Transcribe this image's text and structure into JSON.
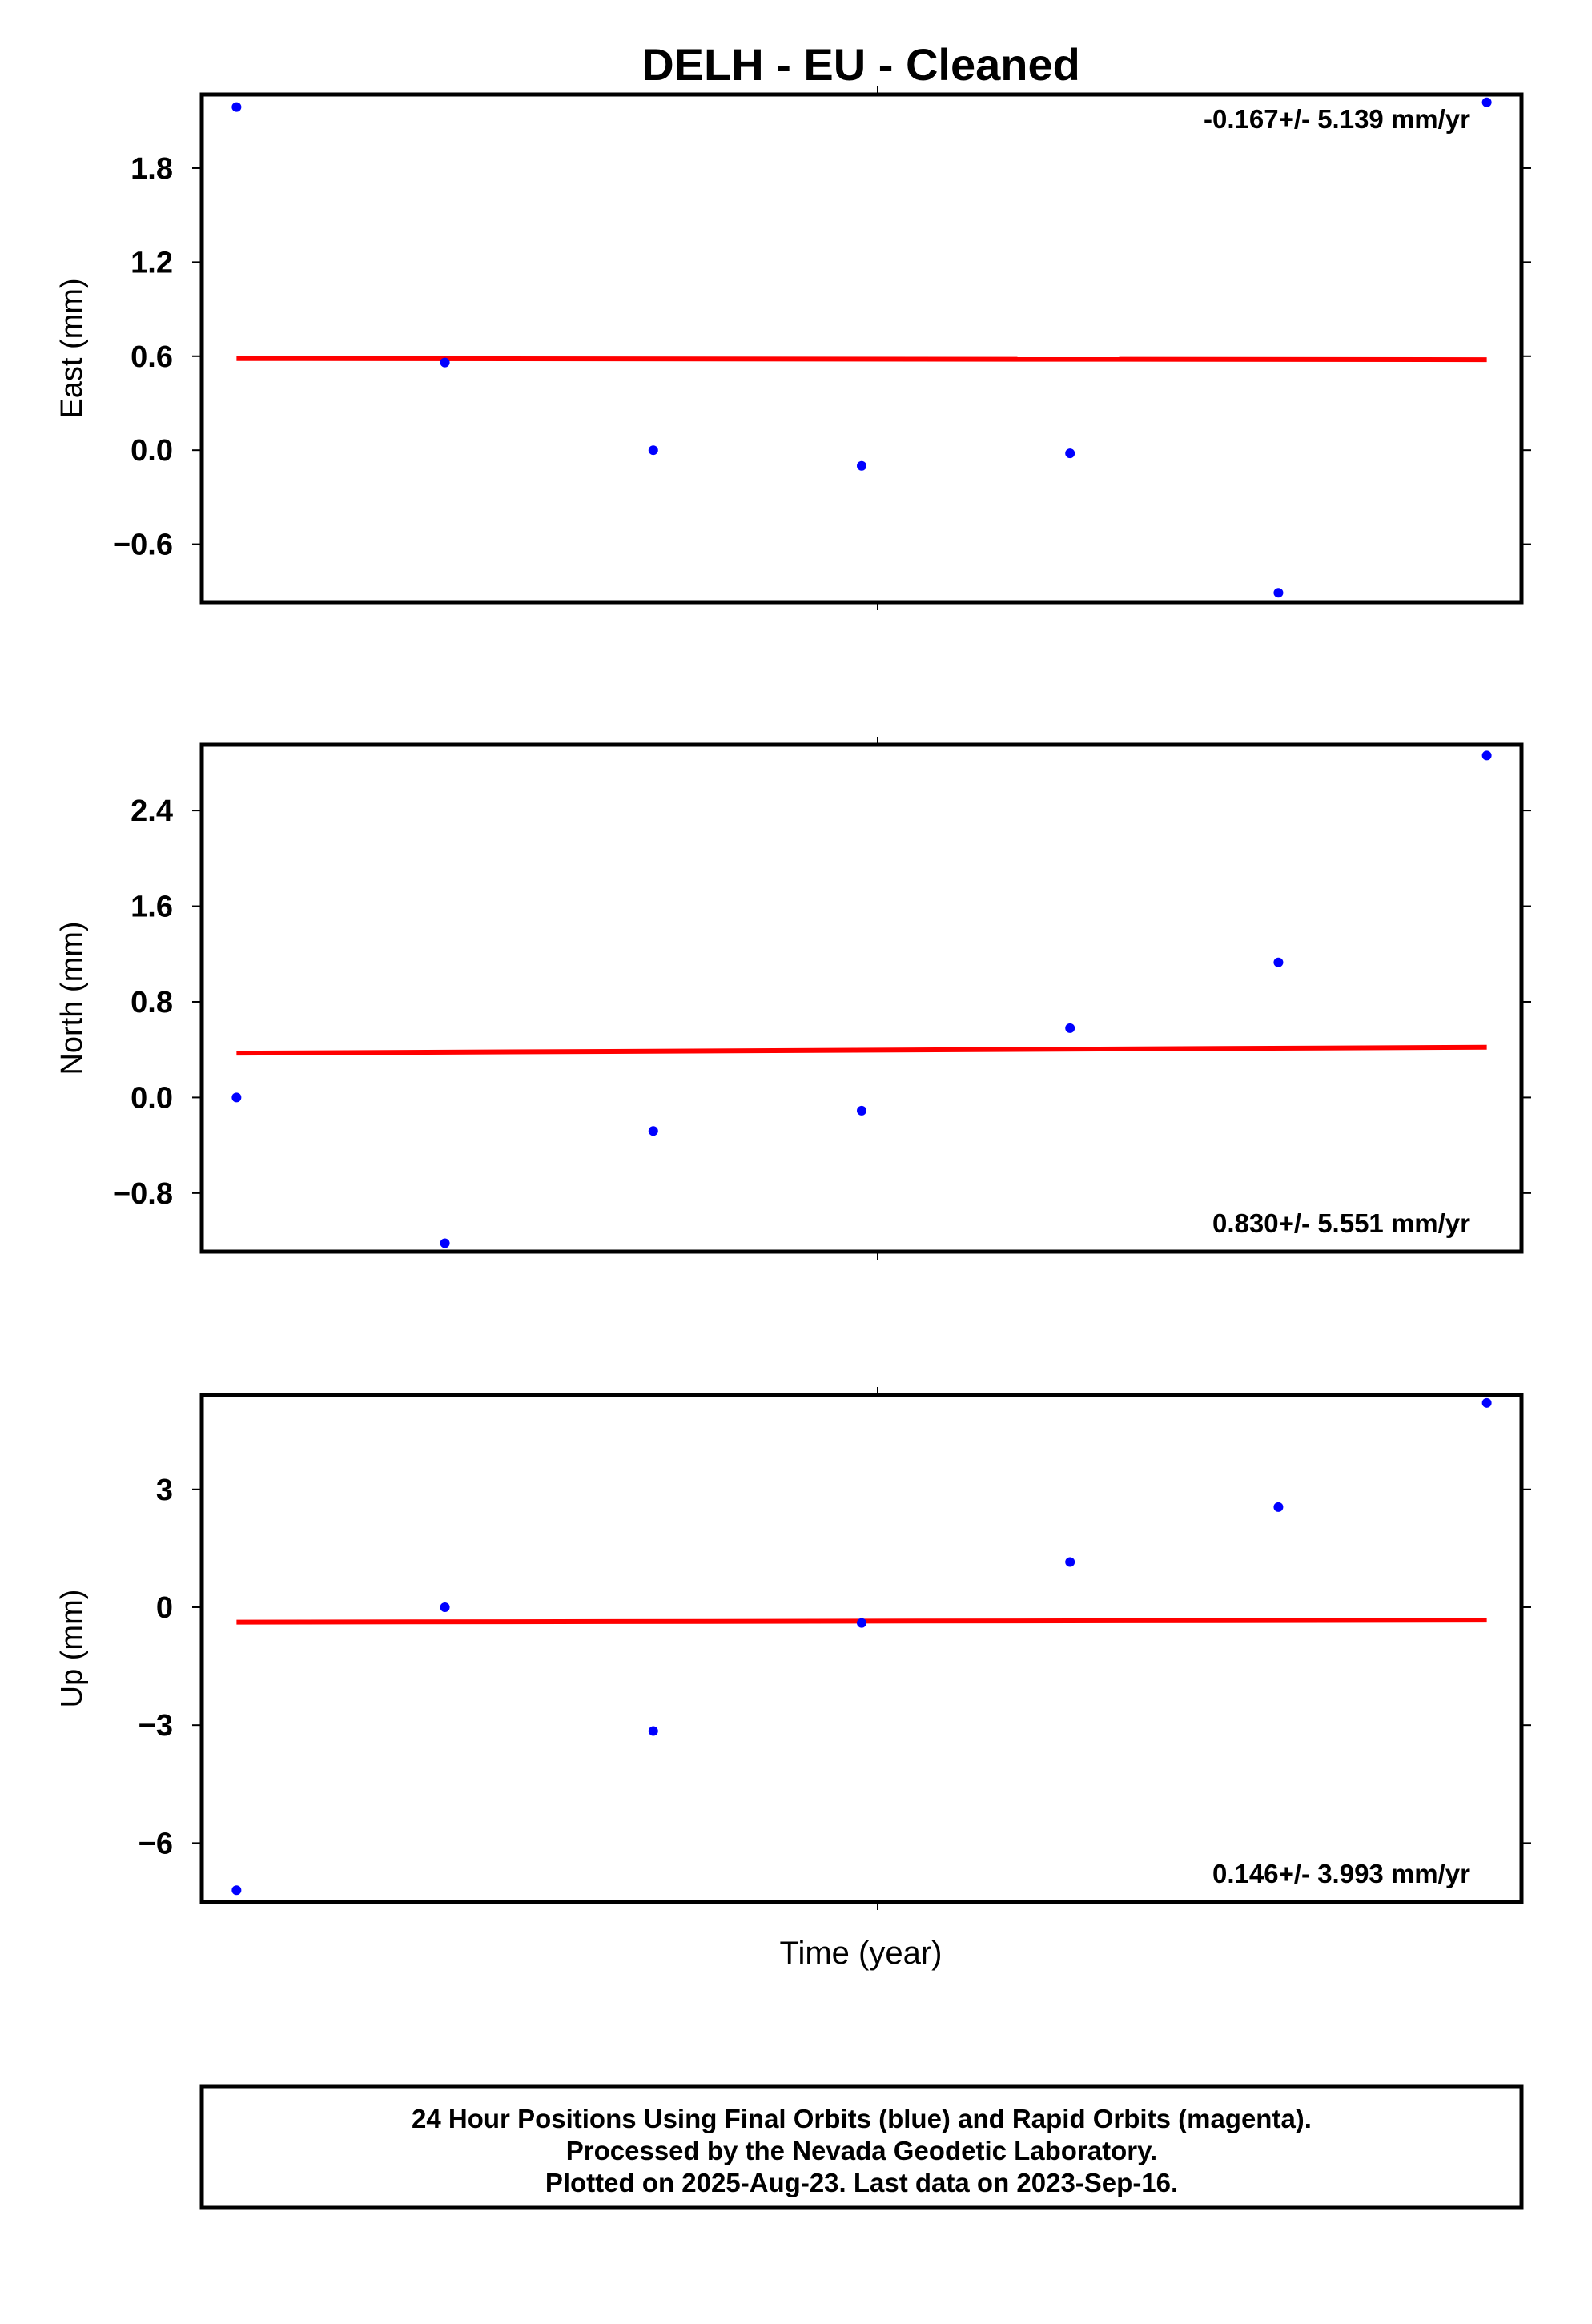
{
  "chart_data": [
    {
      "type": "scatter",
      "title": "DELH  - EU - Cleaned",
      "ylabel": "East (mm)",
      "xlabel": "",
      "rate_label": "-0.167+/- 5.139 mm/yr",
      "rate_position": "top-right",
      "ylim": [
        -0.97,
        2.27
      ],
      "yticks": [
        "1.8",
        "1.2",
        "0.6",
        "0.0",
        "−0.6"
      ],
      "ytick_values": [
        1.8,
        1.2,
        0.6,
        0.0,
        -0.6
      ],
      "x": [
        2023.69,
        2023.693,
        2023.696,
        2023.699,
        2023.702,
        2023.705,
        2023.708
      ],
      "series": [
        {
          "values": [
            2.19,
            0.56,
            0.0,
            -0.1,
            -0.02,
            -0.91,
            2.22
          ],
          "color": "#0000ff"
        }
      ],
      "trend": {
        "start": 0.585,
        "end": 0.578,
        "color": "#ff0000"
      }
    },
    {
      "type": "scatter",
      "title": "",
      "ylabel": "North (mm)",
      "xlabel": "",
      "rate_label": "0.830+/- 5.551 mm/yr",
      "rate_position": "bottom-right",
      "ylim": [
        -1.29,
        2.95
      ],
      "yticks": [
        "2.4",
        "1.6",
        "0.8",
        "0.0",
        "−0.8"
      ],
      "ytick_values": [
        2.4,
        1.6,
        0.8,
        0.0,
        -0.8
      ],
      "x": [
        2023.69,
        2023.693,
        2023.696,
        2023.699,
        2023.702,
        2023.705,
        2023.708
      ],
      "series": [
        {
          "values": [
            0.0,
            -1.22,
            -0.28,
            -0.11,
            0.58,
            1.13,
            2.86
          ],
          "color": "#0000ff"
        }
      ],
      "trend": {
        "start": 0.37,
        "end": 0.42,
        "color": "#ff0000"
      }
    },
    {
      "type": "scatter",
      "title": "",
      "ylabel": "Up (mm)",
      "xlabel": "Time (year)",
      "rate_label": "0.146+/- 3.993 mm/yr",
      "rate_position": "bottom-right",
      "ylim": [
        -7.5,
        5.4
      ],
      "yticks": [
        "3",
        "0",
        "−3",
        "−6"
      ],
      "ytick_values": [
        3,
        0,
        -3,
        -6
      ],
      "x": [
        2023.69,
        2023.693,
        2023.696,
        2023.699,
        2023.702,
        2023.705,
        2023.708
      ],
      "series": [
        {
          "values": [
            -7.2,
            0.0,
            -3.15,
            -0.4,
            1.15,
            2.55,
            5.2
          ],
          "color": "#0000ff"
        }
      ],
      "trend": {
        "start": -0.38,
        "end": -0.33,
        "color": "#ff0000"
      }
    }
  ],
  "xlim": [
    2023.6895,
    2023.7085
  ],
  "footer": {
    "line1": "24 Hour Positions Using Final Orbits (blue) and Rapid Orbits (magenta).",
    "line2": "Processed by the Nevada Geodetic Laboratory.",
    "line3": "Plotted on 2025-Aug-23. Last data on 2023-Sep-16."
  }
}
